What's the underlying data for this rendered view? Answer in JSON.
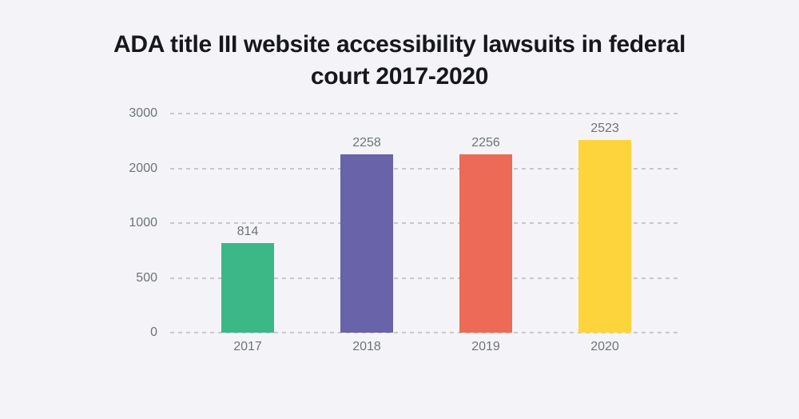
{
  "page": {
    "background_color": "#f4f4f8"
  },
  "chart_data": {
    "type": "bar",
    "title": "ADA title III website accessibility lawsuits in federal court 2017-2020",
    "title_lines": [
      "ADA title III website accessibility lawsuits in federal",
      "court 2017-2020"
    ],
    "categories": [
      "2017",
      "2018",
      "2019",
      "2020"
    ],
    "values": [
      814,
      2258,
      2256,
      2523
    ],
    "value_labels": [
      "814",
      "2258",
      "2256",
      "2523"
    ],
    "bar_colors": [
      "#3cb786",
      "#6963a9",
      "#ec6a56",
      "#fdd43c"
    ],
    "y_ticks": [
      0,
      500,
      1000,
      2000,
      3000
    ],
    "y_tick_labels": [
      "0",
      "500",
      "1000",
      "2000",
      "3000"
    ],
    "ylim": [
      0,
      3000
    ],
    "y_scale_note": "ticks 0,500,1000,2000,3000 are equally spaced (non-linear axis)",
    "xlabel": "",
    "ylabel": "",
    "grid": "horizontal dashed",
    "legend": "none",
    "colors": {
      "background": "#f4f4f8",
      "title_text": "#17181b",
      "axis_text": "#6d737b",
      "gridline": "#c5c7cd"
    }
  }
}
